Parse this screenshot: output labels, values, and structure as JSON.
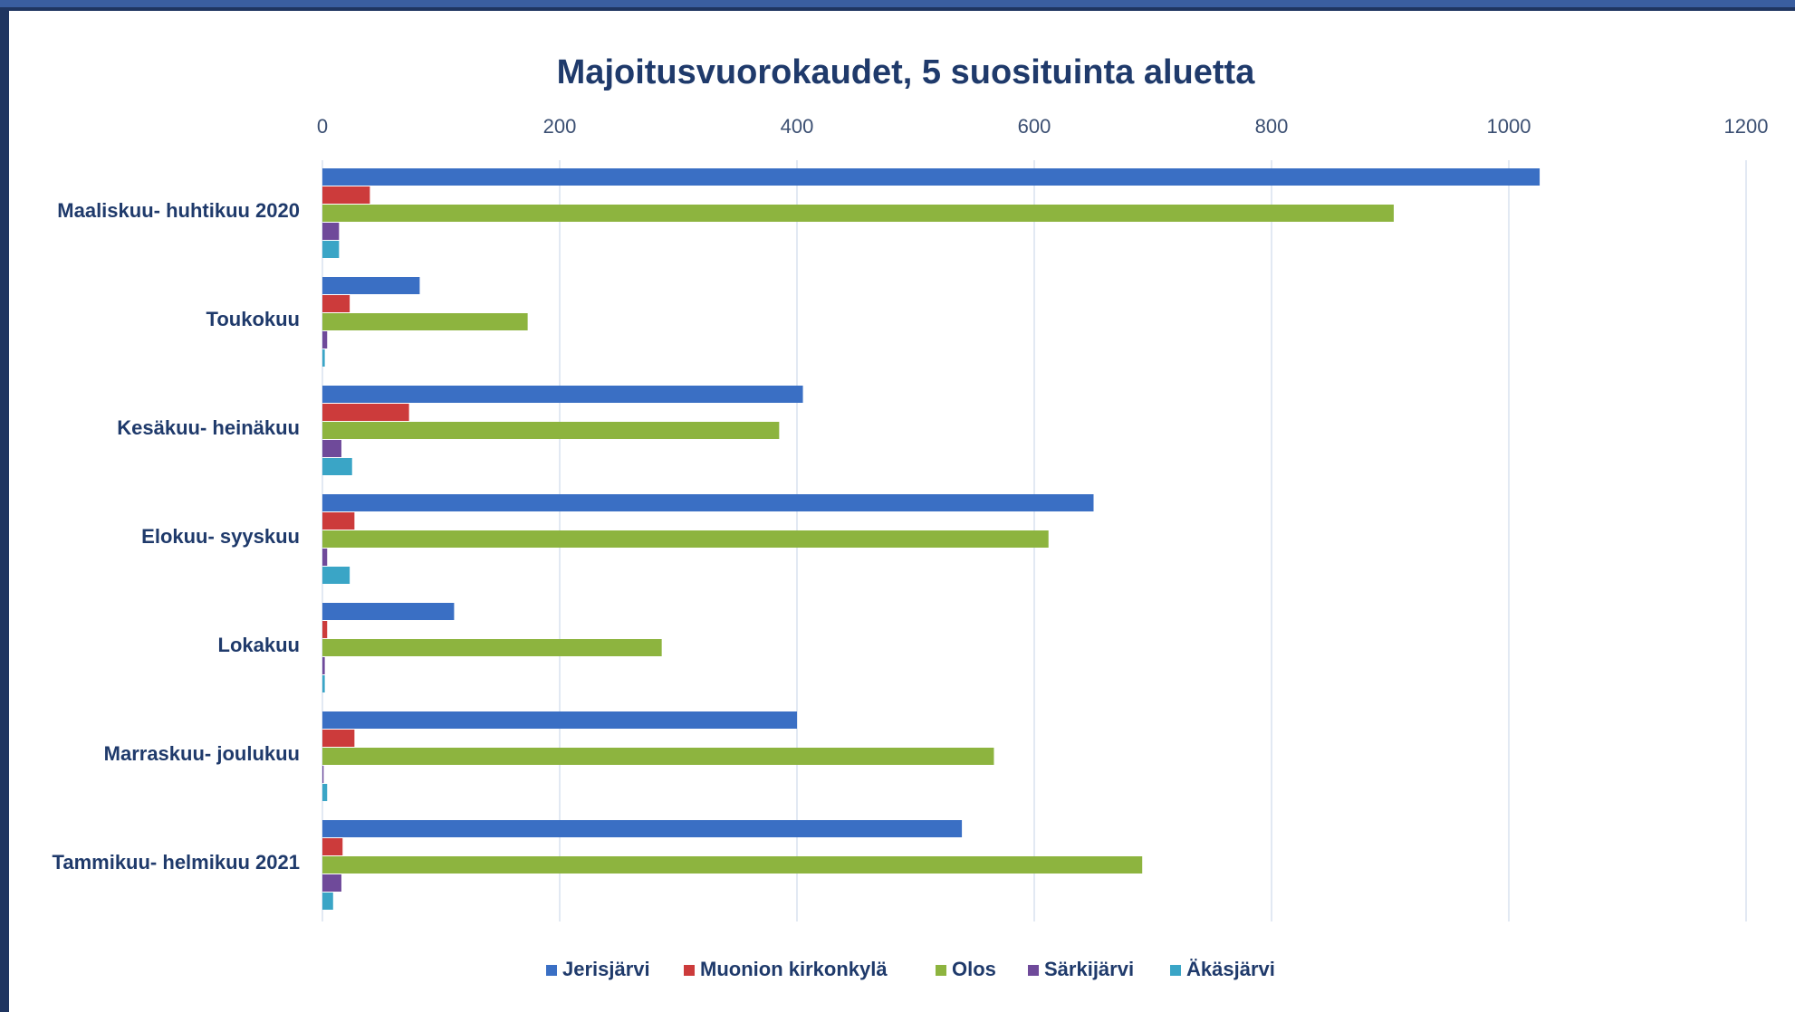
{
  "chart_data": {
    "type": "bar",
    "orientation": "horizontal",
    "title": "Majoitusvuorokaudet, 5 suosituinta aluetta",
    "categories": [
      "Maaliskuu- huhtikuu 2020",
      "Toukokuu",
      "Kesäkuu- heinäkuu",
      "Elokuu- syyskuu",
      "Lokakuu",
      "Marraskuu- joulukuu",
      "Tammikuu- helmikuu 2021"
    ],
    "series": [
      {
        "name": "Jerisjärvi",
        "color": "#3a6fc4",
        "values": [
          1026,
          82,
          405,
          650,
          111,
          400,
          539
        ]
      },
      {
        "name": "Muonion kirkonkylä",
        "color": "#cc3b3b",
        "values": [
          40,
          23,
          73,
          27,
          4,
          27,
          17
        ]
      },
      {
        "name": "Olos",
        "color": "#8db43f",
        "values": [
          903,
          173,
          385,
          612,
          286,
          566,
          691
        ]
      },
      {
        "name": "Särkijärvi",
        "color": "#6f4a9a",
        "values": [
          14,
          4,
          16,
          4,
          2,
          1,
          16
        ]
      },
      {
        "name": "Äkäsjärvi",
        "color": "#3aa5c6",
        "values": [
          14,
          2,
          25,
          23,
          2,
          4,
          9
        ]
      }
    ],
    "xlim": [
      0,
      1200
    ],
    "xticks": [
      0,
      200,
      400,
      600,
      800,
      1000,
      1200
    ],
    "grid": true,
    "legend": "bottom"
  }
}
